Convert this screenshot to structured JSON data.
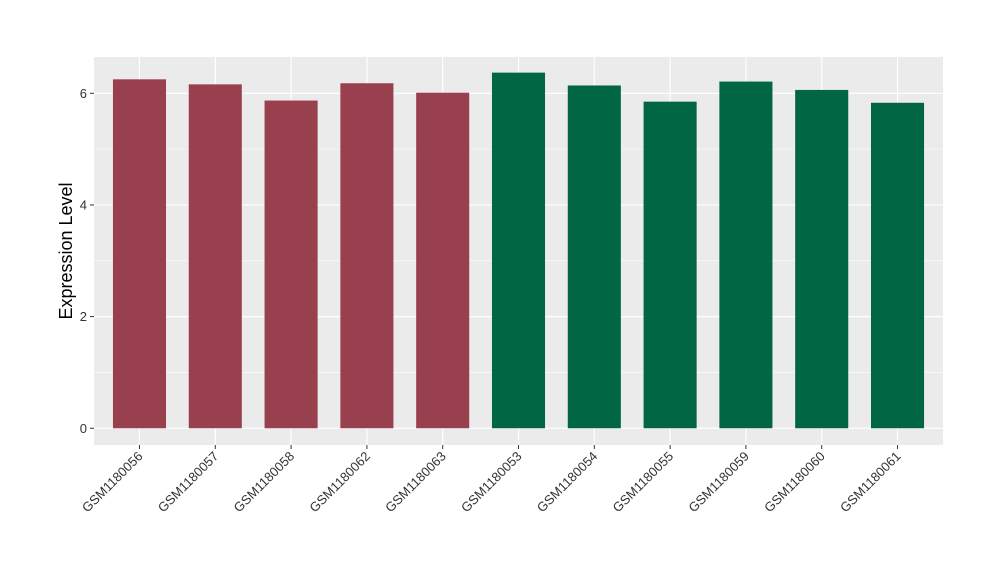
{
  "chart_data": {
    "type": "bar",
    "title": "",
    "xlabel": "",
    "ylabel": "Expression Level",
    "ylim": [
      -0.3,
      6.65
    ],
    "yticks": [
      0,
      2,
      4,
      6
    ],
    "grid": true,
    "legend": "none",
    "categories": [
      "GSM1180056",
      "GSM1180057",
      "GSM1180058",
      "GSM1180062",
      "GSM1180063",
      "GSM1180053",
      "GSM1180054",
      "GSM1180055",
      "GSM1180059",
      "GSM1180060",
      "GSM1180061"
    ],
    "values": [
      6.25,
      6.16,
      5.87,
      6.18,
      6.01,
      6.37,
      6.14,
      5.85,
      6.21,
      6.06,
      5.83
    ],
    "group_index": [
      0,
      0,
      0,
      0,
      0,
      1,
      1,
      1,
      1,
      1,
      1
    ],
    "group_colors": [
      "#99404f",
      "#006643"
    ],
    "panel_color": "#ebebeb",
    "grid_color": "#ffffff"
  }
}
